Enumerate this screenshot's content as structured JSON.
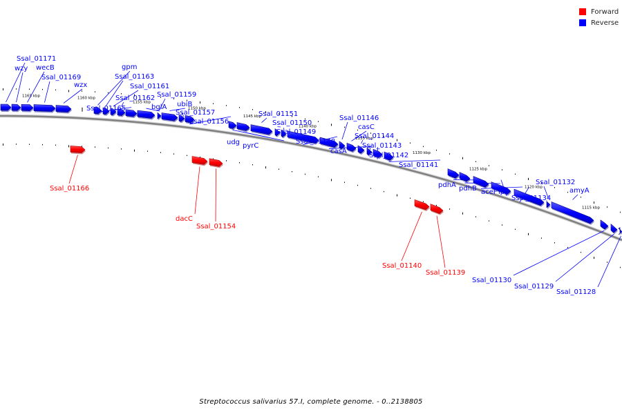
{
  "legend": {
    "items": [
      {
        "label": "Forward",
        "color": "#ff0000"
      },
      {
        "label": "Reverse",
        "color": "#0000ff"
      }
    ]
  },
  "caption": "Streptococcus salivarius 57.I, complete genome. - 0..2138805",
  "colors": {
    "forward": "#ff0000",
    "reverse": "#0000ff",
    "backbone": "#808080",
    "tick": "#000000"
  },
  "ticks": [
    "1165 kbp",
    "1160 kbp",
    "1155 kbp",
    "1150 kbp",
    "1145 kbp",
    "1140 kbp",
    "1135 kbp",
    "1130 kbp",
    "1125 kbp",
    "1120 kbp",
    "1115 kbp"
  ],
  "reverse_genes": [
    "Ssal_01171",
    "wzy",
    "wecB",
    "Ssal_01169",
    "wzx",
    "gpm",
    "Ssal_01163",
    "Ssal_01161",
    "Ssal_01162",
    "Ssal_01165",
    "bglA",
    "Ssal_01159",
    "ubiB",
    "Ssal_01157",
    "Ssal_01156",
    "udg",
    "pyrC",
    "Ssal_01151",
    "Ssal_01150",
    "Ssal_01149",
    "Ssal_01148",
    "casA",
    "Ssal_01146",
    "casC",
    "Ssal_01144",
    "Ssal_01143",
    "Ssal_01142",
    "Ssal_01141",
    "pdhA",
    "pdhB",
    "aceF",
    "lpd",
    "Ssal_01134",
    "Ssal_01132",
    "amyA",
    "Ssal_01130",
    "Ssal_01129",
    "Ssal_01128"
  ],
  "forward_genes": [
    "Ssal_01166",
    "dacC",
    "Ssal_01154",
    "Ssal_01140",
    "Ssal_01139"
  ]
}
